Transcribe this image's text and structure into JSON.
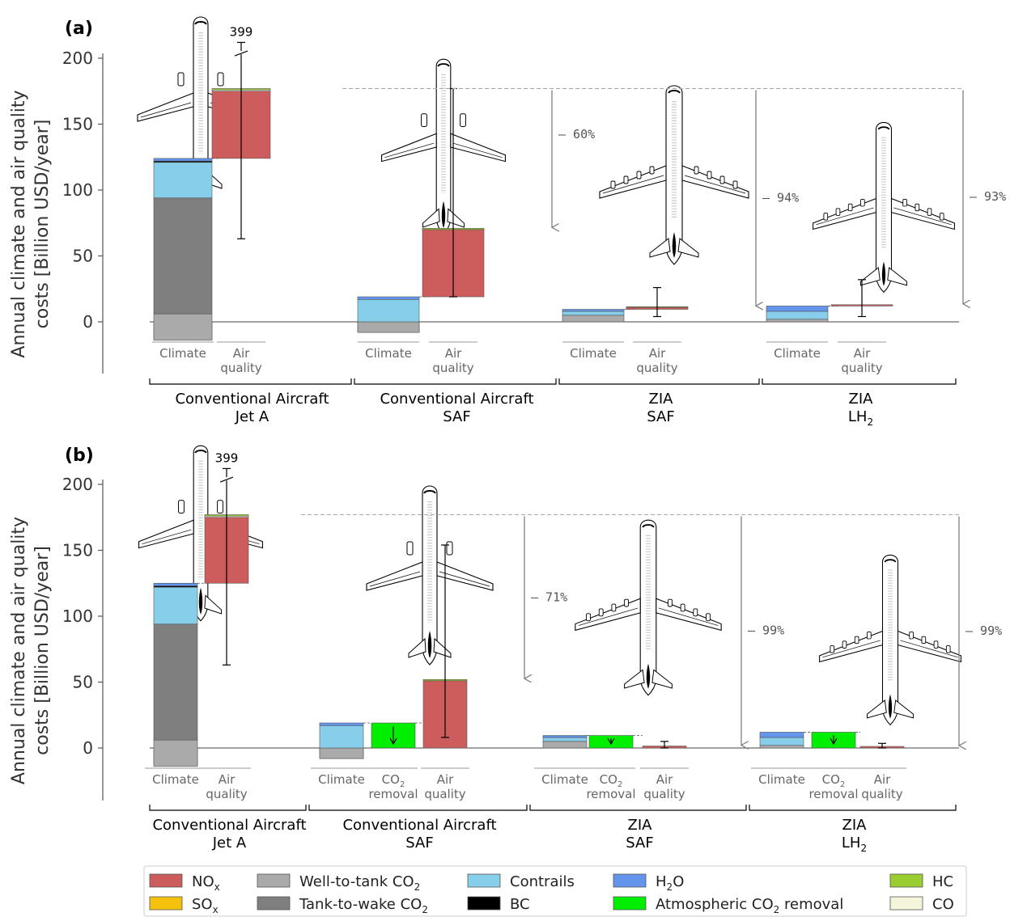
{
  "colors": {
    "NOx": "#cd5c5c",
    "SOx": "#f4c20d",
    "WTT": "#aaaaaa",
    "TTW": "#7f7f7f",
    "Contrails": "#87ceeb",
    "BC": "#000000",
    "H2O": "#6495ed",
    "ACR": "#00ee00",
    "HC": "#9acd32",
    "CO": "#f5f5dc"
  },
  "legend": [
    {
      "key": "NOx",
      "label": "NO",
      "sub": "x"
    },
    {
      "key": "WTT",
      "label": "Well-to-tank CO",
      "sub": "2"
    },
    {
      "key": "Contrails",
      "label": "Contrails",
      "sub": ""
    },
    {
      "key": "H2O",
      "label": "H",
      "sub": "2",
      "tail": "O"
    },
    {
      "key": "HC",
      "label": "HC",
      "sub": ""
    },
    {
      "key": "SOx",
      "label": "SO",
      "sub": "x"
    },
    {
      "key": "TTW",
      "label": "Tank-to-wake CO",
      "sub": "2"
    },
    {
      "key": "BC",
      "label": "BC",
      "sub": ""
    },
    {
      "key": "ACR",
      "label": "Atmospheric CO",
      "sub": "2",
      "tail": " removal"
    },
    {
      "key": "CO",
      "label": "CO",
      "sub": ""
    }
  ],
  "chart_data": [
    {
      "panel": "(a)",
      "type": "bar",
      "ylabel": [
        "Annual climate and air quality",
        "costs [Billion USD/year]"
      ],
      "ylim": [
        -15,
        200
      ],
      "yticks": [
        0,
        50,
        100,
        150,
        200
      ],
      "break_label": "399",
      "scenarios": [
        {
          "name": [
            "Conventional Aircraft",
            "Jet A"
          ],
          "bars": [
            {
              "label": "Climate",
              "segments": [
                {
                  "key": "NOx",
                  "y0": 0,
                  "y1": -7
                },
                {
                  "key": "SOx",
                  "y0": -7,
                  "y1": -13
                },
                {
                  "key": "TTW",
                  "y0": 6,
                  "y1": 94
                },
                {
                  "key": "WTT",
                  "y0": -14,
                  "y1": 6
                },
                {
                  "key": "Contrails",
                  "y0": 94,
                  "y1": 121
                },
                {
                  "key": "BC",
                  "y0": 121,
                  "y1": 122
                },
                {
                  "key": "H2O",
                  "y0": 122,
                  "y1": 124
                }
              ]
            },
            {
              "label": "Air quality",
              "segments": [
                {
                  "key": "NOx",
                  "y0": 124,
                  "y1": 175
                },
                {
                  "key": "CO",
                  "y0": 175,
                  "y1": 176
                },
                {
                  "key": "HC",
                  "y0": 176,
                  "y1": 177
                }
              ],
              "error": [
                63,
                212
              ]
            }
          ]
        },
        {
          "name": [
            "Conventional Aircraft",
            "SAF"
          ],
          "bars": [
            {
              "label": "Climate",
              "segments": [
                {
                  "key": "NOx",
                  "y0": 0,
                  "y1": -8
                },
                {
                  "key": "WTT",
                  "y0": -8,
                  "y1": 0
                },
                {
                  "key": "Contrails",
                  "y0": 0,
                  "y1": 17
                },
                {
                  "key": "H2O",
                  "y0": 17,
                  "y1": 19
                }
              ]
            },
            {
              "label": "Air quality",
              "segments": [
                {
                  "key": "NOx",
                  "y0": 19,
                  "y1": 70
                },
                {
                  "key": "HC",
                  "y0": 70,
                  "y1": 71
                }
              ],
              "error": [
                19,
                177
              ]
            }
          ],
          "reduction": "– 60%",
          "arrow_to": 71
        },
        {
          "name": [
            "ZIA",
            "SAF"
          ],
          "bars": [
            {
              "label": "Climate",
              "segments": [
                {
                  "key": "WTT",
                  "y0": 0,
                  "y1": 5
                },
                {
                  "key": "Contrails",
                  "y0": 5,
                  "y1": 8
                },
                {
                  "key": "H2O",
                  "y0": 8,
                  "y1": 9.5
                }
              ]
            },
            {
              "label": "Air quality",
              "segments": [
                {
                  "key": "NOx",
                  "y0": 9.5,
                  "y1": 11
                },
                {
                  "key": "HC",
                  "y0": 11,
                  "y1": 11.5
                }
              ],
              "error": [
                4,
                26
              ]
            }
          ],
          "reduction": "– 94%",
          "arrow_to": 11.5
        },
        {
          "name": [
            "ZIA",
            "LH",
            "2"
          ],
          "bars": [
            {
              "label": "Climate",
              "segments": [
                {
                  "key": "WTT",
                  "y0": 0,
                  "y1": 2
                },
                {
                  "key": "Contrails",
                  "y0": 2,
                  "y1": 8
                },
                {
                  "key": "H2O",
                  "y0": 8,
                  "y1": 12
                }
              ]
            },
            {
              "label": "Air quality",
              "segments": [
                {
                  "key": "NOx",
                  "y0": 12,
                  "y1": 13
                }
              ],
              "error": [
                4,
                32
              ]
            }
          ],
          "reduction": "– 93%",
          "arrow_to": 13
        }
      ],
      "reference_line": 177
    },
    {
      "panel": "(b)",
      "type": "bar",
      "ylabel": [
        "Annual climate and air quality",
        "costs [Billion USD/year]"
      ],
      "ylim": [
        -15,
        200
      ],
      "yticks": [
        0,
        50,
        100,
        150,
        200
      ],
      "break_label": "399",
      "scenarios": [
        {
          "name": [
            "Conventional Aircraft",
            "Jet A"
          ],
          "bars": [
            {
              "label": "Climate",
              "segments": [
                {
                  "key": "NOx",
                  "y0": 0,
                  "y1": -8
                },
                {
                  "key": "SOx",
                  "y0": -8,
                  "y1": -13
                },
                {
                  "key": "TTW",
                  "y0": 6,
                  "y1": 94
                },
                {
                  "key": "WTT",
                  "y0": -14,
                  "y1": 6
                },
                {
                  "key": "Contrails",
                  "y0": 94,
                  "y1": 122
                },
                {
                  "key": "BC",
                  "y0": 122,
                  "y1": 123
                },
                {
                  "key": "H2O",
                  "y0": 123,
                  "y1": 125
                }
              ]
            },
            {
              "label": "Air quality",
              "segments": [
                {
                  "key": "NOx",
                  "y0": 125,
                  "y1": 175
                },
                {
                  "key": "CO",
                  "y0": 175,
                  "y1": 176
                },
                {
                  "key": "HC",
                  "y0": 176,
                  "y1": 177
                }
              ],
              "error": [
                63,
                212
              ]
            }
          ]
        },
        {
          "name": [
            "Conventional Aircraft",
            "SAF"
          ],
          "bars": [
            {
              "label": "Climate",
              "segments": [
                {
                  "key": "NOx",
                  "y0": 0,
                  "y1": -8
                },
                {
                  "key": "WTT",
                  "y0": -8,
                  "y1": 0
                },
                {
                  "key": "Contrails",
                  "y0": 0,
                  "y1": 17
                },
                {
                  "key": "H2O",
                  "y0": 17,
                  "y1": 19
                }
              ]
            },
            {
              "label": "CO2 removal",
              "labelSub": true,
              "segments": [
                {
                  "key": "ACR",
                  "y0": 0,
                  "y1": 19
                }
              ],
              "down_arrow": true
            },
            {
              "label": "Air quality",
              "segments": [
                {
                  "key": "NOx",
                  "y0": 0,
                  "y1": 51
                },
                {
                  "key": "HC",
                  "y0": 51,
                  "y1": 52
                }
              ],
              "error": [
                8,
                154
              ]
            }
          ],
          "reduction": "– 71%",
          "arrow_to": 52
        },
        {
          "name": [
            "ZIA",
            "SAF"
          ],
          "bars": [
            {
              "label": "Climate",
              "segments": [
                {
                  "key": "WTT",
                  "y0": 0,
                  "y1": 5
                },
                {
                  "key": "Contrails",
                  "y0": 5,
                  "y1": 8
                },
                {
                  "key": "H2O",
                  "y0": 8,
                  "y1": 9.5
                }
              ]
            },
            {
              "label": "CO2 removal",
              "labelSub": true,
              "segments": [
                {
                  "key": "ACR",
                  "y0": 0,
                  "y1": 9.5
                }
              ],
              "down_arrow": true
            },
            {
              "label": "Air quality",
              "segments": [
                {
                  "key": "NOx",
                  "y0": 0,
                  "y1": 1.5
                }
              ],
              "error": [
                0,
                5
              ]
            }
          ],
          "reduction": "– 99%",
          "arrow_to": 1.5
        },
        {
          "name": [
            "ZIA",
            "LH",
            "2"
          ],
          "bars": [
            {
              "label": "Climate",
              "segments": [
                {
                  "key": "WTT",
                  "y0": 0,
                  "y1": 2
                },
                {
                  "key": "Contrails",
                  "y0": 2,
                  "y1": 8
                },
                {
                  "key": "H2O",
                  "y0": 8,
                  "y1": 12
                }
              ]
            },
            {
              "label": "CO2 removal",
              "labelSub": true,
              "segments": [
                {
                  "key": "ACR",
                  "y0": 0,
                  "y1": 12
                }
              ],
              "down_arrow": true
            },
            {
              "label": "Air quality",
              "segments": [
                {
                  "key": "NOx",
                  "y0": 0,
                  "y1": 1.2
                }
              ],
              "error": [
                0,
                3.5
              ]
            }
          ],
          "reduction": "– 99%",
          "arrow_to": 1.2
        }
      ],
      "reference_line": 177
    }
  ]
}
